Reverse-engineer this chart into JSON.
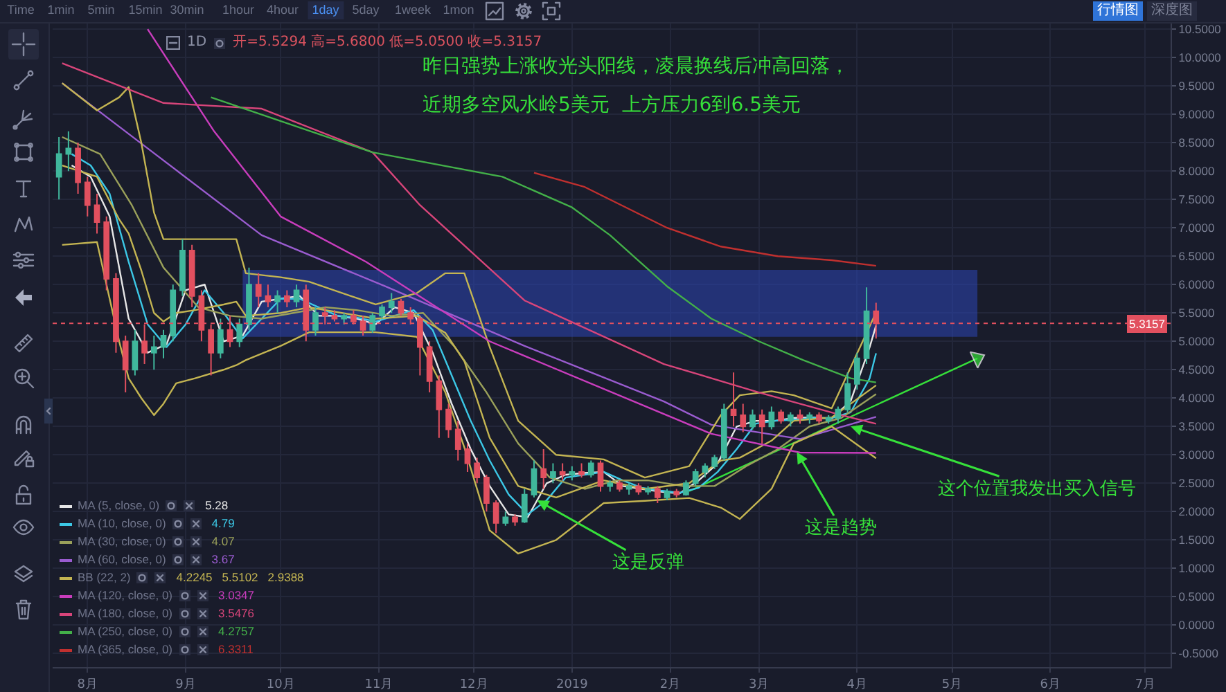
{
  "chart_data": {
    "type": "candlestick",
    "x": [
      "2018-07-23",
      "2018-07-26",
      "2018-07-29",
      "2018-08-01",
      "2018-08-04",
      "2018-08-07",
      "2018-08-10",
      "2018-08-13",
      "2018-08-16",
      "2018-08-19",
      "2018-08-22",
      "2018-08-25",
      "2018-08-28",
      "2018-08-31",
      "2018-09-03",
      "2018-09-06",
      "2018-09-09",
      "2018-09-12",
      "2018-09-15",
      "2018-09-18",
      "2018-09-21",
      "2018-09-24",
      "2018-09-27",
      "2018-09-30",
      "2018-10-03",
      "2018-10-06",
      "2018-10-09",
      "2018-10-12",
      "2018-10-15",
      "2018-10-18",
      "2018-10-21",
      "2018-10-24",
      "2018-10-27",
      "2018-10-30",
      "2018-11-02",
      "2018-11-05",
      "2018-11-08",
      "2018-11-11",
      "2018-11-14",
      "2018-11-17",
      "2018-11-20",
      "2018-11-23",
      "2018-11-26",
      "2018-11-29",
      "2018-12-02",
      "2018-12-05",
      "2018-12-08",
      "2018-12-11",
      "2018-12-14",
      "2018-12-17",
      "2018-12-20",
      "2018-12-23",
      "2018-12-26",
      "2018-12-29",
      "2019-01-01",
      "2019-01-04",
      "2019-01-07",
      "2019-01-10",
      "2019-01-13",
      "2019-01-16",
      "2019-01-19",
      "2019-01-22",
      "2019-01-25",
      "2019-01-28",
      "2019-01-31",
      "2019-02-03",
      "2019-02-06",
      "2019-02-09",
      "2019-02-12",
      "2019-02-15",
      "2019-02-18",
      "2019-02-21",
      "2019-02-24",
      "2019-02-27",
      "2019-03-02",
      "2019-03-05",
      "2019-03-08",
      "2019-03-11",
      "2019-03-14",
      "2019-03-17",
      "2019-03-20",
      "2019-03-23",
      "2019-03-26",
      "2019-03-29",
      "2019-04-01",
      "2019-04-04",
      "2019-04-07"
    ],
    "ohlc": [
      [
        7.9,
        8.6,
        7.5,
        8.3
      ],
      [
        8.3,
        8.7,
        8.0,
        8.4
      ],
      [
        8.4,
        8.5,
        7.6,
        7.8
      ],
      [
        7.8,
        7.9,
        7.2,
        7.4
      ],
      [
        7.4,
        7.6,
        6.9,
        7.1
      ],
      [
        7.1,
        7.2,
        5.9,
        6.1
      ],
      [
        6.1,
        6.2,
        4.8,
        5.0
      ],
      [
        5.0,
        5.1,
        4.1,
        4.5
      ],
      [
        4.5,
        5.2,
        4.4,
        5.0
      ],
      [
        5.0,
        5.3,
        4.6,
        4.8
      ],
      [
        4.8,
        5.1,
        4.5,
        4.9
      ],
      [
        4.9,
        5.2,
        4.7,
        5.1
      ],
      [
        5.1,
        6.0,
        5.0,
        5.9
      ],
      [
        5.9,
        6.8,
        5.8,
        6.6
      ],
      [
        6.6,
        6.7,
        5.6,
        5.8
      ],
      [
        5.8,
        5.9,
        5.0,
        5.2
      ],
      [
        5.2,
        5.3,
        4.4,
        4.8
      ],
      [
        4.8,
        5.4,
        4.7,
        5.2
      ],
      [
        5.2,
        5.45,
        4.9,
        5.0
      ],
      [
        5.0,
        5.4,
        4.9,
        5.3
      ],
      [
        5.3,
        6.3,
        5.2,
        6.0
      ],
      [
        6.0,
        6.2,
        5.6,
        5.8
      ],
      [
        5.8,
        6.0,
        5.6,
        5.7
      ],
      [
        5.7,
        5.9,
        5.5,
        5.8
      ],
      [
        5.8,
        5.9,
        5.6,
        5.7
      ],
      [
        5.7,
        6.0,
        5.6,
        5.9
      ],
      [
        5.9,
        6.0,
        5.0,
        5.2
      ],
      [
        5.2,
        5.6,
        5.1,
        5.5
      ],
      [
        5.5,
        5.6,
        5.3,
        5.45
      ],
      [
        5.45,
        5.55,
        5.35,
        5.4
      ],
      [
        5.4,
        5.5,
        5.3,
        5.45
      ],
      [
        5.45,
        5.55,
        5.3,
        5.35
      ],
      [
        5.35,
        5.45,
        5.1,
        5.2
      ],
      [
        5.2,
        5.5,
        5.15,
        5.45
      ],
      [
        5.45,
        5.65,
        5.4,
        5.6
      ],
      [
        5.6,
        5.85,
        5.5,
        5.7
      ],
      [
        5.7,
        5.75,
        5.45,
        5.5
      ],
      [
        5.5,
        5.6,
        5.3,
        5.4
      ],
      [
        5.4,
        5.45,
        4.4,
        4.9
      ],
      [
        4.9,
        5.0,
        4.1,
        4.3
      ],
      [
        4.3,
        4.4,
        3.3,
        3.8
      ],
      [
        3.8,
        3.9,
        3.3,
        3.45
      ],
      [
        3.45,
        3.6,
        2.9,
        3.1
      ],
      [
        3.1,
        3.2,
        2.7,
        2.85
      ],
      [
        2.85,
        2.95,
        2.5,
        2.6
      ],
      [
        2.6,
        2.65,
        2.0,
        2.15
      ],
      [
        2.15,
        2.2,
        1.62,
        1.8
      ],
      [
        1.8,
        2.0,
        1.75,
        1.9
      ],
      [
        1.9,
        1.95,
        1.75,
        1.82
      ],
      [
        1.82,
        2.4,
        1.8,
        2.3
      ],
      [
        2.3,
        2.9,
        2.25,
        2.75
      ],
      [
        2.75,
        3.1,
        2.4,
        2.6
      ],
      [
        2.6,
        2.85,
        2.5,
        2.7
      ],
      [
        2.7,
        2.85,
        2.55,
        2.65
      ],
      [
        2.65,
        2.8,
        2.55,
        2.7
      ],
      [
        2.7,
        2.85,
        2.6,
        2.65
      ],
      [
        2.65,
        2.9,
        2.6,
        2.85
      ],
      [
        2.85,
        2.9,
        2.35,
        2.45
      ],
      [
        2.45,
        2.55,
        2.35,
        2.5
      ],
      [
        2.5,
        2.55,
        2.35,
        2.4
      ],
      [
        2.4,
        2.5,
        2.3,
        2.45
      ],
      [
        2.45,
        2.5,
        2.3,
        2.35
      ],
      [
        2.35,
        2.45,
        2.3,
        2.4
      ],
      [
        2.4,
        2.45,
        2.15,
        2.25
      ],
      [
        2.25,
        2.4,
        2.2,
        2.35
      ],
      [
        2.35,
        2.4,
        2.25,
        2.3
      ],
      [
        2.3,
        2.55,
        2.28,
        2.5
      ],
      [
        2.5,
        2.75,
        2.45,
        2.7
      ],
      [
        2.7,
        2.85,
        2.6,
        2.8
      ],
      [
        2.8,
        3.0,
        2.75,
        2.95
      ],
      [
        2.95,
        3.9,
        2.9,
        3.8
      ],
      [
        3.8,
        4.45,
        3.5,
        3.7
      ],
      [
        3.7,
        3.9,
        3.4,
        3.5
      ],
      [
        3.5,
        3.8,
        3.45,
        3.7
      ],
      [
        3.7,
        3.8,
        3.2,
        3.5
      ],
      [
        3.5,
        3.85,
        3.45,
        3.75
      ],
      [
        3.75,
        3.8,
        3.55,
        3.6
      ],
      [
        3.6,
        3.75,
        3.5,
        3.7
      ],
      [
        3.7,
        3.8,
        3.55,
        3.65
      ],
      [
        3.65,
        3.75,
        3.55,
        3.7
      ],
      [
        3.7,
        3.75,
        3.55,
        3.6
      ],
      [
        3.6,
        3.7,
        3.55,
        3.65
      ],
      [
        3.65,
        3.85,
        3.55,
        3.8
      ],
      [
        3.8,
        4.45,
        3.75,
        4.25
      ],
      [
        4.25,
        4.8,
        4.15,
        4.7
      ],
      [
        4.7,
        5.95,
        4.6,
        5.53
      ],
      [
        5.5294,
        5.68,
        5.05,
        5.3157
      ]
    ],
    "colors": [
      "#40b79c",
      "#40b79c",
      "#e2505f",
      "#e2505f",
      "#e2505f",
      "#e2505f",
      "#e2505f",
      "#e2505f",
      "#40b79c",
      "#e2505f",
      "#40b79c",
      "#40b79c",
      "#40b79c",
      "#40b79c",
      "#e2505f",
      "#e2505f",
      "#e2505f",
      "#40b79c",
      "#e2505f",
      "#40b79c",
      "#40b79c",
      "#e2505f",
      "#e2505f",
      "#40b79c",
      "#e2505f",
      "#40b79c",
      "#e2505f",
      "#40b79c",
      "#e2505f",
      "#e2505f",
      "#40b79c",
      "#e2505f",
      "#e2505f",
      "#40b79c",
      "#40b79c",
      "#40b79c",
      "#e2505f",
      "#e2505f",
      "#e2505f",
      "#e2505f",
      "#e2505f",
      "#e2505f",
      "#e2505f",
      "#e2505f",
      "#e2505f",
      "#e2505f",
      "#e2505f",
      "#40b79c",
      "#e2505f",
      "#40b79c",
      "#40b79c",
      "#e2505f",
      "#40b79c",
      "#e2505f",
      "#40b79c",
      "#e2505f",
      "#40b79c",
      "#e2505f",
      "#40b79c",
      "#e2505f",
      "#40b79c",
      "#e2505f",
      "#40b79c",
      "#e2505f",
      "#40b79c",
      "#e2505f",
      "#40b79c",
      "#40b79c",
      "#40b79c",
      "#40b79c",
      "#40b79c",
      "#e2505f",
      "#e2505f",
      "#40b79c",
      "#e2505f",
      "#40b79c",
      "#e2505f",
      "#40b79c",
      "#e2505f",
      "#40b79c",
      "#e2505f",
      "#40b79c",
      "#40b79c",
      "#40b79c",
      "#40b79c",
      "#40b79c",
      "#e2505f"
    ],
    "xlim": [
      "2018-07-21",
      "2019-07-09"
    ],
    "xticks": [
      {
        "value": "2018-08-01",
        "label": "8月"
      },
      {
        "value": "2018-09-01",
        "label": "9月"
      },
      {
        "value": "2018-10-01",
        "label": "10月"
      },
      {
        "value": "2018-11-01",
        "label": "11月"
      },
      {
        "value": "2018-12-01",
        "label": "12月"
      },
      {
        "value": "2019-01-01",
        "label": "2019"
      },
      {
        "value": "2019-02-01",
        "label": "2月"
      },
      {
        "value": "2019-03-01",
        "label": "3月"
      },
      {
        "value": "2019-04-01",
        "label": "4月"
      },
      {
        "value": "2019-05-01",
        "label": "5月"
      },
      {
        "value": "2019-06-01",
        "label": "6月"
      },
      {
        "value": "2019-07-01",
        "label": "7月"
      }
    ],
    "ylim": [
      -0.74,
      10.6
    ],
    "yticks": [
      {
        "value": -0.5,
        "label": "-0.5000"
      },
      {
        "value": 0,
        "label": "0.0000"
      },
      {
        "value": 0.5,
        "label": "0.5000"
      },
      {
        "value": 1,
        "label": "1.0000"
      },
      {
        "value": 1.5,
        "label": "1.5000"
      },
      {
        "value": 2,
        "label": "2.0000"
      },
      {
        "value": 2.5,
        "label": "2.5000"
      },
      {
        "value": 3,
        "label": "3.0000"
      },
      {
        "value": 3.5,
        "label": "3.5000"
      },
      {
        "value": 4,
        "label": "4.0000"
      },
      {
        "value": 4.5,
        "label": "4.5000"
      },
      {
        "value": 5,
        "label": "5.0000"
      },
      {
        "value": 5.5,
        "label": "5.5000"
      },
      {
        "value": 6,
        "label": "6.0000"
      },
      {
        "value": 6.5,
        "label": "6.5000"
      },
      {
        "value": 7,
        "label": "7.0000"
      },
      {
        "value": 7.5,
        "label": "7.5000"
      },
      {
        "value": 8,
        "label": "8.0000"
      },
      {
        "value": 8.5,
        "label": "8.5000"
      },
      {
        "value": 9,
        "label": "9.0000"
      },
      {
        "value": 9.5,
        "label": "9.5000"
      },
      {
        "value": 10,
        "label": "10.0000"
      },
      {
        "value": 10.5,
        "label": "10.5000"
      }
    ],
    "grid": true,
    "legend": "bottom left",
    "series": [
      {
        "type": "line",
        "color": "#2b45b5",
        "x": [
          "2018-09-19",
          "2019-05-09"
        ],
        "values": [
          null,
          null
        ],
        "lower": [
          5.08,
          5.08
        ],
        "upper": [
          6.26,
          6.26
        ]
      },
      {
        "type": "line",
        "color": "#36e03a",
        "marker": "triangle",
        "x": [
          "2019-02-07",
          "2019-05-09"
        ],
        "values": [
          2.36,
          4.7
        ]
      },
      {
        "name": "MA (5, close, 0)",
        "type": "line",
        "color": "#e6e6e6",
        "x": [
          "2018-07-27",
          "2018-08-02",
          "2018-08-08",
          "2018-08-14",
          "2018-08-20",
          "2018-08-26",
          "2018-09-01",
          "2018-09-07",
          "2018-09-13",
          "2018-09-19",
          "2018-09-25",
          "2018-10-01",
          "2018-10-07",
          "2018-10-13",
          "2018-10-19",
          "2018-10-25",
          "2018-10-31",
          "2018-11-06",
          "2018-11-12",
          "2018-11-18",
          "2018-11-24",
          "2018-11-30",
          "2018-12-06",
          "2018-12-12",
          "2018-12-18",
          "2018-12-24",
          "2018-12-30",
          "2019-01-05",
          "2019-01-11",
          "2019-01-17",
          "2019-01-23",
          "2019-01-29",
          "2019-02-04",
          "2019-02-10",
          "2019-02-16",
          "2019-02-22",
          "2019-02-28",
          "2019-03-06",
          "2019-03-12",
          "2019-03-18",
          "2019-03-24",
          "2019-03-30",
          "2019-04-05",
          "2019-04-07"
        ],
        "values": [
          8.1,
          7.9,
          7.2,
          5.4,
          4.8,
          4.95,
          5.9,
          6.0,
          5.0,
          5.1,
          5.7,
          5.75,
          5.8,
          5.45,
          5.45,
          5.4,
          5.3,
          5.6,
          5.5,
          4.8,
          3.9,
          3.1,
          2.45,
          1.95,
          1.9,
          2.5,
          2.65,
          2.68,
          2.7,
          2.45,
          2.4,
          2.35,
          2.32,
          2.55,
          2.85,
          3.5,
          3.6,
          3.6,
          3.65,
          3.66,
          3.64,
          3.95,
          4.9,
          5.28
        ]
      },
      {
        "name": "MA (10, close, 0)",
        "type": "line",
        "color": "#3cc8e6",
        "x": [
          "2018-07-27",
          "2018-08-02",
          "2018-08-08",
          "2018-08-14",
          "2018-08-20",
          "2018-08-26",
          "2018-09-01",
          "2018-09-07",
          "2018-09-13",
          "2018-09-19",
          "2018-09-25",
          "2018-10-01",
          "2018-10-07",
          "2018-10-13",
          "2018-10-19",
          "2018-10-25",
          "2018-10-31",
          "2018-11-06",
          "2018-11-12",
          "2018-11-18",
          "2018-11-24",
          "2018-11-30",
          "2018-12-06",
          "2018-12-12",
          "2018-12-18",
          "2018-12-24",
          "2018-12-30",
          "2019-01-05",
          "2019-01-11",
          "2019-01-17",
          "2019-01-23",
          "2019-01-29",
          "2019-02-04",
          "2019-02-10",
          "2019-02-16",
          "2019-02-22",
          "2019-02-28",
          "2019-03-06",
          "2019-03-12",
          "2019-03-18",
          "2019-03-24",
          "2019-03-30",
          "2019-04-05",
          "2019-04-07"
        ],
        "values": [
          8.3,
          8.1,
          7.6,
          6.4,
          5.3,
          4.9,
          5.3,
          5.9,
          5.5,
          5.05,
          5.4,
          5.75,
          5.75,
          5.6,
          5.45,
          5.42,
          5.35,
          5.45,
          5.55,
          5.2,
          4.4,
          3.6,
          2.9,
          2.3,
          1.95,
          2.2,
          2.6,
          2.65,
          2.7,
          2.55,
          2.42,
          2.37,
          2.33,
          2.42,
          2.7,
          3.1,
          3.55,
          3.6,
          3.62,
          3.65,
          3.65,
          3.75,
          4.35,
          4.79
        ]
      },
      {
        "name": "MA (30, close, 0)",
        "type": "line",
        "color": "#9aa05a",
        "x": [
          "2018-07-24",
          "2018-08-05",
          "2018-08-15",
          "2018-08-25",
          "2018-09-05",
          "2018-09-15",
          "2018-09-25",
          "2018-10-05",
          "2018-10-15",
          "2018-10-25",
          "2018-11-05",
          "2018-11-15",
          "2018-11-25",
          "2018-12-05",
          "2018-12-15",
          "2018-12-25",
          "2019-01-05",
          "2019-01-15",
          "2019-01-25",
          "2019-02-05",
          "2019-02-15",
          "2019-02-25",
          "2019-03-07",
          "2019-03-17",
          "2019-03-27",
          "2019-04-07"
        ],
        "values": [
          8.6,
          8.3,
          7.4,
          6.3,
          5.6,
          5.45,
          5.4,
          5.5,
          5.6,
          5.55,
          5.45,
          5.5,
          4.9,
          4.1,
          3.2,
          2.6,
          2.4,
          2.55,
          2.55,
          2.45,
          2.45,
          2.8,
          3.1,
          3.5,
          3.65,
          4.07
        ]
      },
      {
        "name": "MA (60, close, 0)",
        "type": "line",
        "color": "#9a5cd0",
        "x": [
          "2018-07-24",
          "2018-08-20",
          "2018-09-25",
          "2018-11-03",
          "2018-12-17",
          "2019-01-30",
          "2019-02-14",
          "2019-03-14",
          "2019-04-07"
        ],
        "values": [
          9.55,
          8.4,
          6.87,
          5.97,
          4.92,
          3.94,
          3.53,
          3.28,
          3.67
        ]
      },
      {
        "name": "BB (22, 2)",
        "type": "line",
        "color": "#c4b552",
        "x": [
          "2018-07-24",
          "2018-08-04",
          "2018-08-11",
          "2018-08-14",
          "2018-08-18",
          "2018-08-22",
          "2018-08-25",
          "2018-08-29",
          "2018-09-04",
          "2018-09-13",
          "2018-09-17",
          "2018-09-20",
          "2018-10-01",
          "2018-10-10",
          "2018-10-31",
          "2018-11-13",
          "2018-11-22",
          "2018-11-28",
          "2018-12-06",
          "2018-12-15",
          "2018-12-27",
          "2019-01-11",
          "2019-01-24",
          "2019-02-07",
          "2019-02-17",
          "2019-02-23",
          "2019-03-05",
          "2019-03-12",
          "2019-03-24",
          "2019-04-07"
        ],
        "values": [
          8.1,
          7.9,
          7.15,
          6.9,
          6.25,
          5.5,
          5.35,
          5.5,
          5.55,
          5.65,
          5.7,
          5.45,
          5.5,
          5.6,
          5.4,
          5.45,
          5.15,
          4.65,
          3.3,
          2.45,
          2.25,
          2.55,
          2.4,
          2.5,
          2.9,
          2.95,
          3.25,
          3.6,
          3.66,
          4.2245
        ]
      },
      {
        "type": "line",
        "color": "#c4b552",
        "x": [
          "2018-07-24",
          "2018-08-04",
          "2018-08-11",
          "2018-08-14",
          "2018-08-18",
          "2018-08-22",
          "2018-08-25",
          "2018-08-29",
          "2018-09-04",
          "2018-09-13",
          "2018-09-17",
          "2018-09-20",
          "2018-10-01",
          "2018-10-10",
          "2018-10-31",
          "2018-11-13",
          "2018-11-22",
          "2018-11-28",
          "2018-12-06",
          "2018-12-15",
          "2018-12-27",
          "2019-01-11",
          "2019-01-24",
          "2019-02-07",
          "2019-02-17",
          "2019-02-23",
          "2019-03-05",
          "2019-03-12",
          "2019-03-24",
          "2019-04-07"
        ],
        "values": [
          9.55,
          9.07,
          9.3,
          9.48,
          8.5,
          7.27,
          6.8,
          6.8,
          6.8,
          6.8,
          6.8,
          6.2,
          6.13,
          6.05,
          5.65,
          5.85,
          6.2,
          6.2,
          4.9,
          3.6,
          3.0,
          2.92,
          2.6,
          2.8,
          3.7,
          4.05,
          4.12,
          4.05,
          3.82,
          5.5102
        ]
      },
      {
        "type": "line",
        "color": "#c4b552",
        "x": [
          "2018-07-24",
          "2018-08-04",
          "2018-08-11",
          "2018-08-14",
          "2018-08-18",
          "2018-08-22",
          "2018-08-25",
          "2018-08-29",
          "2018-09-04",
          "2018-09-13",
          "2018-09-17",
          "2018-09-20",
          "2018-10-01",
          "2018-10-10",
          "2018-10-31",
          "2018-11-13",
          "2018-11-22",
          "2018-11-28",
          "2018-12-06",
          "2018-12-15",
          "2018-12-27",
          "2019-01-11",
          "2019-01-24",
          "2019-02-07",
          "2019-02-17",
          "2019-02-23",
          "2019-03-05",
          "2019-03-12",
          "2019-03-24",
          "2019-04-07"
        ],
        "values": [
          6.7,
          6.75,
          5.0,
          4.35,
          4.0,
          3.7,
          3.9,
          4.26,
          4.35,
          4.5,
          4.58,
          4.67,
          4.92,
          5.16,
          5.16,
          5.08,
          4.1,
          3.13,
          1.67,
          1.26,
          1.5,
          2.15,
          2.19,
          2.24,
          2.07,
          1.87,
          2.4,
          3.2,
          3.5,
          2.9388
        ]
      },
      {
        "name": "MA (120, close, 0)",
        "type": "line",
        "color": "#c93dbd",
        "x": [
          "2018-08-20",
          "2018-09-10",
          "2018-10-01",
          "2018-10-28",
          "2018-12-06",
          "2019-02-14",
          "2019-03-14",
          "2019-04-07"
        ],
        "values": [
          10.5,
          8.7,
          7.2,
          6.4,
          5.0,
          3.37,
          3.04,
          3.0347
        ]
      },
      {
        "name": "MA (180, close, 0)",
        "type": "line",
        "color": "#d8457a",
        "x": [
          "2018-07-24",
          "2018-08-25",
          "2018-09-25",
          "2018-10-30",
          "2018-11-14",
          "2018-12-17",
          "2019-01-30",
          "2019-03-01",
          "2019-03-27",
          "2019-04-07"
        ],
        "values": [
          9.9,
          9.2,
          9.1,
          8.33,
          7.4,
          5.72,
          4.6,
          4.1,
          3.7,
          3.5476
        ]
      },
      {
        "name": "MA (250, close, 0)",
        "type": "line",
        "color": "#43b049",
        "x": [
          "2018-09-09",
          "2018-10-30",
          "2018-12-10",
          "2019-01-01",
          "2019-01-13",
          "2019-01-31",
          "2019-02-14",
          "2019-03-01",
          "2019-03-15",
          "2019-03-30",
          "2019-04-07"
        ],
        "values": [
          9.3,
          8.33,
          7.9,
          7.36,
          6.87,
          5.97,
          5.4,
          5.0,
          4.67,
          4.35,
          4.2757
        ]
      },
      {
        "name": "MA (365, close, 0)",
        "type": "line",
        "color": "#c0302f",
        "x": [
          "2018-12-20",
          "2019-01-05",
          "2019-01-18",
          "2019-01-31",
          "2019-02-17",
          "2019-03-07",
          "2019-03-24",
          "2019-04-07"
        ],
        "values": [
          7.97,
          7.72,
          7.36,
          7.0,
          6.67,
          6.5,
          6.43,
          6.3311
        ]
      }
    ],
    "ref_lines": [
      {
        "axis": "y",
        "value": 5.3157,
        "label": "5.3157",
        "color": "#e2505f",
        "line_style": "dotted"
      }
    ],
    "annotations": [
      "Time",
      "1min",
      "5min",
      "15min",
      "30min",
      "1hour",
      "4hour",
      "1day",
      "5day",
      "1week",
      "1mon",
      "行情图",
      "深度图",
      "1D",
      "开=5.5294 高=5.6800 低=5.0500 收=5.3157",
      "昨日强势上涨收光头阳线，凌晨换线后冲高回落，",
      "近期多空风水岭5美元  上方压力6到6.5美元",
      {
        "text": "这是反弹",
        "x": "2018-12-21",
        "y": 2.2
      },
      {
        "text": "这是趋势",
        "x": "2019-03-13",
        "y": 3.05
      },
      {
        "text": "这个位置我发出买入信号",
        "x": "2019-03-30",
        "y": 3.5
      },
      "5.28",
      "4.79",
      "4.07",
      "3.67",
      "4.2245",
      "5.5102",
      "2.9388",
      "3.0347",
      "3.5476",
      "4.2757",
      "6.3311"
    ]
  }
}
